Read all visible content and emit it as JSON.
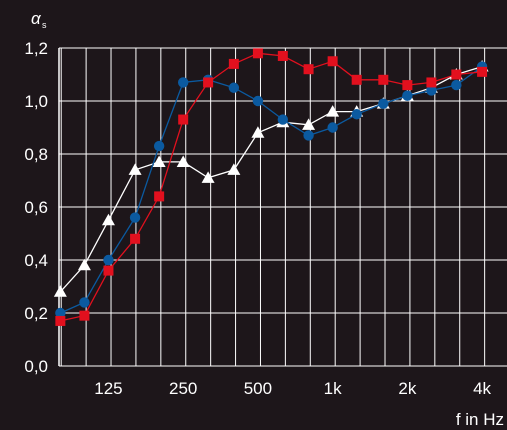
{
  "chart_data": {
    "type": "line",
    "ylabel": "α",
    "ylabel_sub": "s",
    "xlabel": "f  in Hz",
    "y_ticks": [
      "0,0",
      "0,2",
      "0,4",
      "0,6",
      "0,8",
      "1,0",
      "1,2"
    ],
    "x_ticks": [
      {
        "freq": 125,
        "label": "125"
      },
      {
        "freq": 250,
        "label": "250"
      },
      {
        "freq": 500,
        "label": "500"
      },
      {
        "freq": 1000,
        "label": "1k"
      },
      {
        "freq": 2000,
        "label": "2k"
      },
      {
        "freq": 4000,
        "label": "4k"
      }
    ],
    "x_scale": "log",
    "x_ticks_per_octave": 3,
    "x_range": [
      79,
      5040
    ],
    "ylim": [
      0,
      1.2
    ],
    "grid": true,
    "frequencies": [
      80,
      100,
      125,
      160,
      200,
      250,
      315,
      400,
      500,
      630,
      800,
      1000,
      1250,
      1600,
      2000,
      2500,
      3150,
      4000,
      5000
    ],
    "series": [
      {
        "marker": "circle",
        "color": "#0b5aa0",
        "values": [
          0.2,
          0.24,
          0.4,
          0.56,
          0.83,
          1.07,
          1.08,
          1.05,
          1.0,
          0.93,
          0.87,
          0.9,
          0.95,
          0.99,
          1.02,
          1.04,
          1.06,
          1.13,
          null
        ]
      },
      {
        "marker": "square",
        "color": "#e2101e",
        "values": [
          0.17,
          0.19,
          0.36,
          0.48,
          0.64,
          0.93,
          1.07,
          1.14,
          1.18,
          1.17,
          1.12,
          1.15,
          1.08,
          1.08,
          1.06,
          1.07,
          1.1,
          1.11,
          null
        ]
      },
      {
        "marker": "triangle",
        "color": "#ffffff",
        "values": [
          0.28,
          0.38,
          0.55,
          0.74,
          0.77,
          0.77,
          0.71,
          0.74,
          0.88,
          0.92,
          0.91,
          0.96,
          0.96,
          0.99,
          1.02,
          1.05,
          1.1,
          1.13,
          null
        ]
      }
    ]
  }
}
